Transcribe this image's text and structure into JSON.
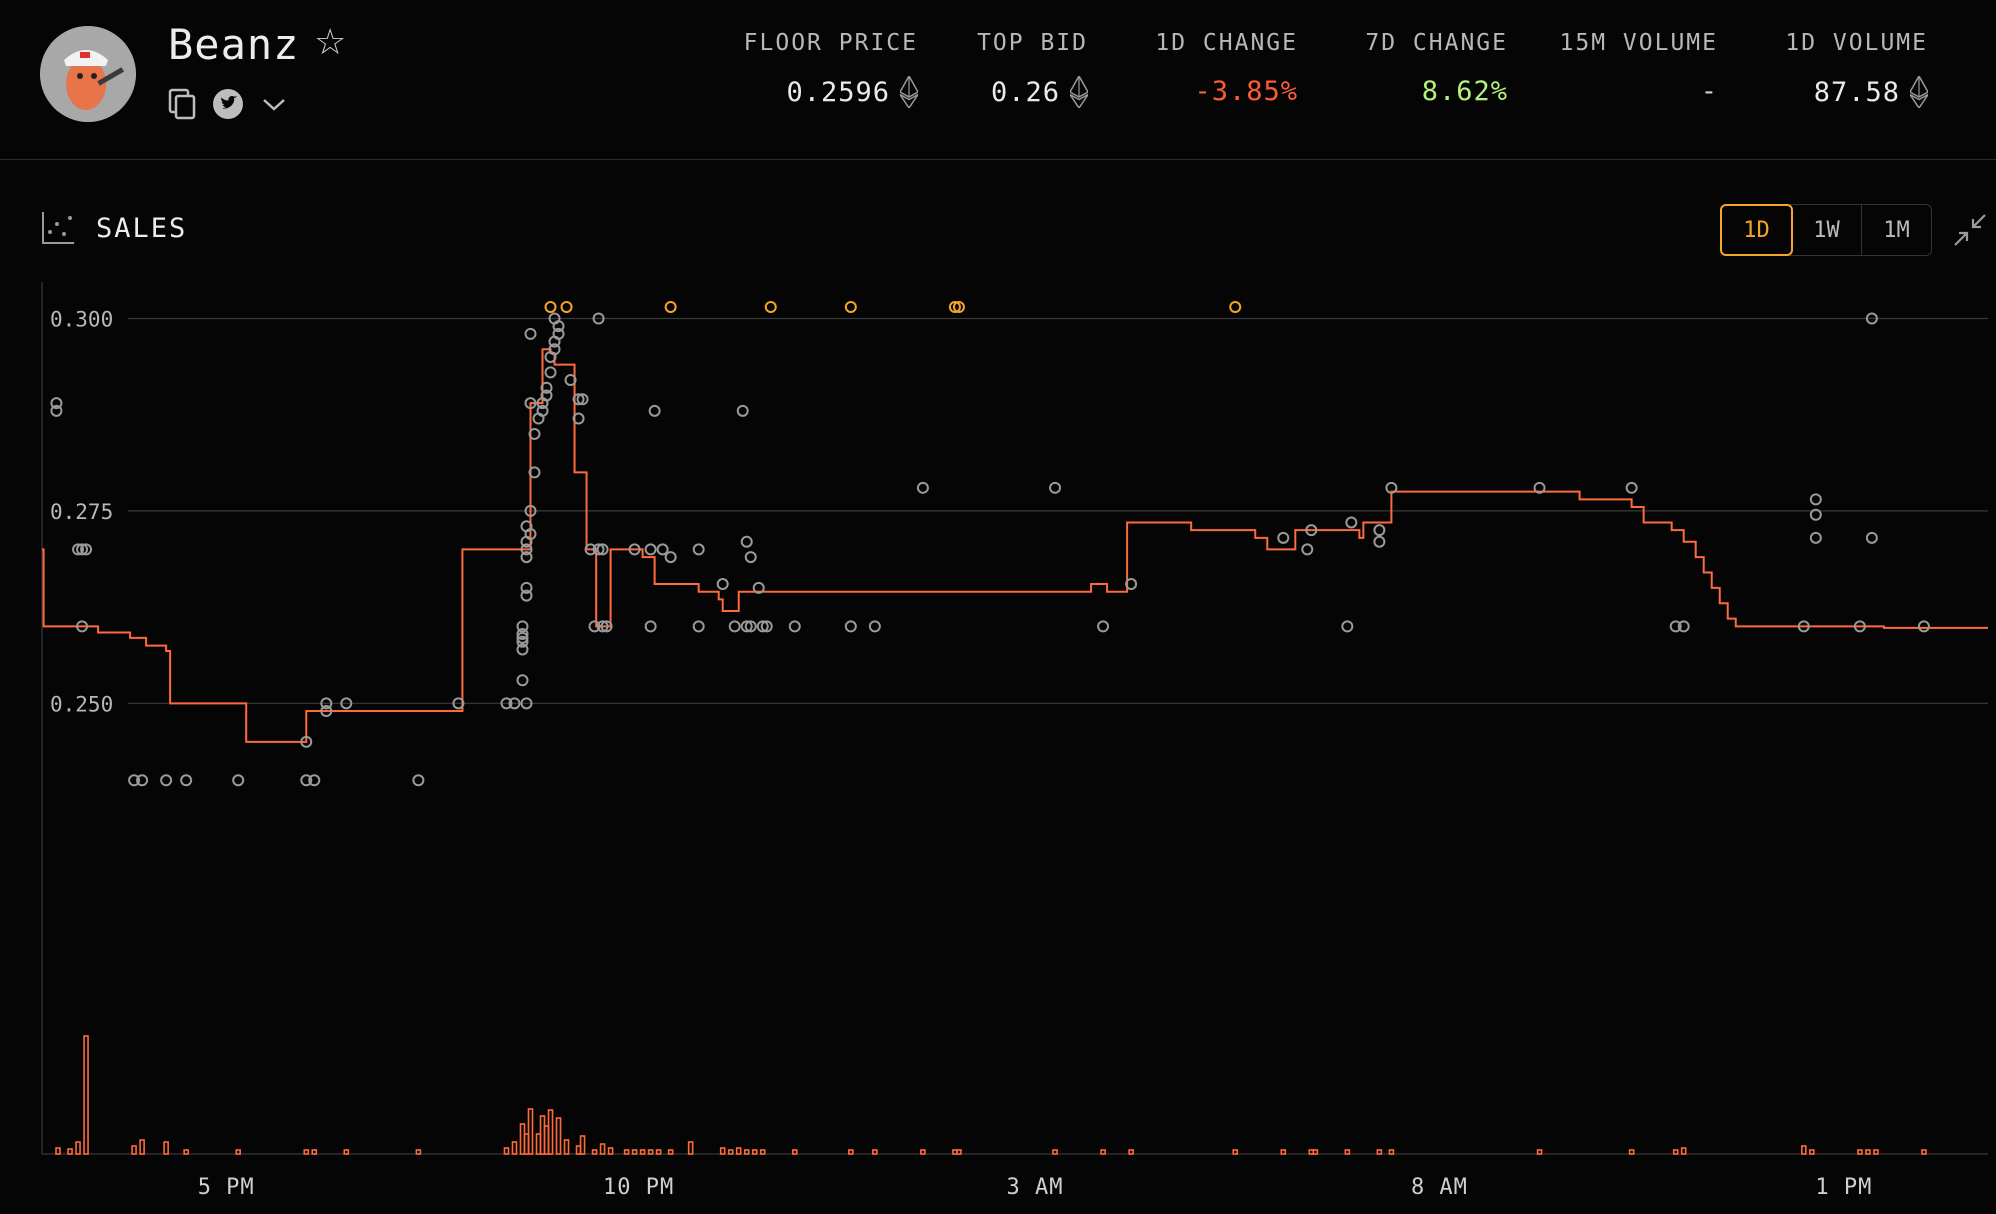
{
  "collection": {
    "name": "Beanz",
    "star_icon": "star-outline-icon",
    "links": [
      "copy-icon",
      "twitter-icon",
      "chevron-down-icon"
    ]
  },
  "stats": [
    {
      "label": "FLOOR PRICE",
      "value": "0.2596",
      "eth": true,
      "color": "#eaeaea"
    },
    {
      "label": "TOP BID",
      "value": "0.26",
      "eth": true,
      "color": "#eaeaea"
    },
    {
      "label": "1D CHANGE",
      "value": "-3.85%",
      "eth": false,
      "color": "#ff5a36"
    },
    {
      "label": "7D CHANGE",
      "value": "8.62%",
      "eth": false,
      "color": "#b6f27a"
    },
    {
      "label": "15M VOLUME",
      "value": "-",
      "eth": false,
      "color": "#cfcfcf"
    },
    {
      "label": "1D VOLUME",
      "value": "87.58",
      "eth": true,
      "color": "#eaeaea"
    }
  ],
  "sales": {
    "title": "SALES",
    "icon": "scatter-chart-icon",
    "ranges": [
      {
        "label": "1D",
        "active": true
      },
      {
        "label": "1W",
        "active": false
      },
      {
        "label": "1M",
        "active": false
      }
    ],
    "collapse_icon": "collapse-arrows-icon"
  },
  "colors": {
    "accent": "#f5a623",
    "floor_line": "#ff6a3d",
    "sale_point": "#9a9a9a",
    "volume_bar": "#ff6a3d",
    "grid": "#3a3a3a"
  },
  "chart_data": {
    "type": "scatter",
    "x_unit": "hours_from_2PM",
    "xlim": [
      0,
      24.3
    ],
    "ylim": [
      0.2225,
      0.305
    ],
    "yticks": [
      {
        "v": 0.3,
        "label": "0.300"
      },
      {
        "v": 0.275,
        "label": "0.275"
      },
      {
        "v": 0.25,
        "label": "0.250"
      }
    ],
    "xticks": [
      {
        "x": 2.3,
        "label": "5 PM"
      },
      {
        "x": 7.45,
        "label": "10 PM"
      },
      {
        "x": 12.4,
        "label": "3 AM"
      },
      {
        "x": 17.45,
        "label": "8 AM"
      },
      {
        "x": 22.5,
        "label": "1 PM"
      }
    ],
    "floor_line": [
      [
        0,
        0.27
      ],
      [
        0.02,
        0.26
      ],
      [
        0.45,
        0.26
      ],
      [
        0.7,
        0.2592
      ],
      [
        1.1,
        0.2585
      ],
      [
        1.3,
        0.2575
      ],
      [
        1.55,
        0.2568
      ],
      [
        1.6,
        0.25
      ],
      [
        2.5,
        0.25
      ],
      [
        2.55,
        0.245
      ],
      [
        3.25,
        0.245
      ],
      [
        3.3,
        0.249
      ],
      [
        5.2,
        0.249
      ],
      [
        5.25,
        0.27
      ],
      [
        6.05,
        0.27
      ],
      [
        6.1,
        0.289
      ],
      [
        6.2,
        0.289
      ],
      [
        6.25,
        0.296
      ],
      [
        6.35,
        0.2955
      ],
      [
        6.4,
        0.294
      ],
      [
        6.6,
        0.294
      ],
      [
        6.65,
        0.28
      ],
      [
        6.75,
        0.28
      ],
      [
        6.8,
        0.27
      ],
      [
        6.9,
        0.27
      ],
      [
        6.92,
        0.26
      ],
      [
        7.05,
        0.26
      ],
      [
        7.1,
        0.27
      ],
      [
        7.5,
        0.269
      ],
      [
        7.65,
        0.2655
      ],
      [
        8.15,
        0.2655
      ],
      [
        8.2,
        0.2645
      ],
      [
        8.45,
        0.2635
      ],
      [
        8.5,
        0.262
      ],
      [
        8.65,
        0.262
      ],
      [
        8.7,
        0.2645
      ],
      [
        13.05,
        0.2645
      ],
      [
        13.1,
        0.2655
      ],
      [
        13.3,
        0.2645
      ],
      [
        13.5,
        0.2645
      ],
      [
        13.55,
        0.2735
      ],
      [
        14.3,
        0.2735
      ],
      [
        14.35,
        0.2725
      ],
      [
        15.1,
        0.2725
      ],
      [
        15.15,
        0.2715
      ],
      [
        15.3,
        0.27
      ],
      [
        15.6,
        0.27
      ],
      [
        15.65,
        0.2725
      ],
      [
        16.4,
        0.2725
      ],
      [
        16.45,
        0.2715
      ],
      [
        16.5,
        0.2735
      ],
      [
        16.8,
        0.2735
      ],
      [
        16.85,
        0.2775
      ],
      [
        19.15,
        0.2775
      ],
      [
        19.2,
        0.2765
      ],
      [
        19.8,
        0.2765
      ],
      [
        19.85,
        0.2755
      ],
      [
        20.0,
        0.2735
      ],
      [
        20.35,
        0.2725
      ],
      [
        20.5,
        0.271
      ],
      [
        20.65,
        0.269
      ],
      [
        20.75,
        0.267
      ],
      [
        20.85,
        0.265
      ],
      [
        20.95,
        0.263
      ],
      [
        21.05,
        0.261
      ],
      [
        21.15,
        0.26
      ],
      [
        22.0,
        0.26
      ],
      [
        23.0,
        0.2598
      ],
      [
        24.3,
        0.2598
      ]
    ],
    "sales": [
      [
        0.18,
        0.289
      ],
      [
        0.18,
        0.288
      ],
      [
        0.45,
        0.27
      ],
      [
        0.5,
        0.27
      ],
      [
        0.55,
        0.27
      ],
      [
        0.5,
        0.26
      ],
      [
        1.15,
        0.24
      ],
      [
        1.25,
        0.24
      ],
      [
        1.55,
        0.24
      ],
      [
        1.8,
        0.24
      ],
      [
        2.45,
        0.24
      ],
      [
        3.3,
        0.24
      ],
      [
        3.4,
        0.24
      ],
      [
        4.7,
        0.24
      ],
      [
        3.3,
        0.245
      ],
      [
        3.55,
        0.249
      ],
      [
        3.55,
        0.25
      ],
      [
        3.8,
        0.25
      ],
      [
        5.2,
        0.25
      ],
      [
        5.8,
        0.25
      ],
      [
        5.9,
        0.25
      ],
      [
        6.05,
        0.25
      ],
      [
        6.0,
        0.253
      ],
      [
        6.0,
        0.257
      ],
      [
        6.0,
        0.258
      ],
      [
        6.0,
        0.2585
      ],
      [
        6.0,
        0.259
      ],
      [
        6.0,
        0.26
      ],
      [
        6.05,
        0.264
      ],
      [
        6.05,
        0.265
      ],
      [
        6.05,
        0.269
      ],
      [
        6.05,
        0.27
      ],
      [
        6.05,
        0.271
      ],
      [
        6.1,
        0.272
      ],
      [
        6.05,
        0.273
      ],
      [
        6.1,
        0.275
      ],
      [
        6.1,
        0.289
      ],
      [
        6.15,
        0.28
      ],
      [
        6.15,
        0.285
      ],
      [
        6.2,
        0.287
      ],
      [
        6.25,
        0.288
      ],
      [
        6.25,
        0.289
      ],
      [
        6.3,
        0.29
      ],
      [
        6.3,
        0.291
      ],
      [
        6.35,
        0.293
      ],
      [
        6.35,
        0.295
      ],
      [
        6.4,
        0.296
      ],
      [
        6.4,
        0.297
      ],
      [
        6.45,
        0.298
      ],
      [
        6.45,
        0.299
      ],
      [
        6.4,
        0.3
      ],
      [
        6.1,
        0.298
      ],
      [
        6.7,
        0.2895
      ],
      [
        6.75,
        0.2895
      ],
      [
        6.9,
        0.26
      ],
      [
        7.0,
        0.26
      ],
      [
        7.05,
        0.26
      ],
      [
        6.95,
        0.27
      ],
      [
        7.0,
        0.27
      ],
      [
        6.85,
        0.27
      ],
      [
        6.6,
        0.292
      ],
      [
        6.7,
        0.287
      ],
      [
        6.95,
        0.3
      ],
      [
        7.6,
        0.27
      ],
      [
        7.75,
        0.27
      ],
      [
        7.4,
        0.27
      ],
      [
        7.85,
        0.269
      ],
      [
        7.65,
        0.288
      ],
      [
        7.6,
        0.26
      ],
      [
        8.2,
        0.26
      ],
      [
        8.2,
        0.27
      ],
      [
        8.5,
        0.2655
      ],
      [
        8.85,
        0.269
      ],
      [
        8.8,
        0.271
      ],
      [
        8.75,
        0.288
      ],
      [
        8.95,
        0.265
      ],
      [
        8.65,
        0.26
      ],
      [
        8.8,
        0.26
      ],
      [
        8.85,
        0.26
      ],
      [
        9.0,
        0.26
      ],
      [
        9.05,
        0.26
      ],
      [
        9.4,
        0.26
      ],
      [
        10.1,
        0.26
      ],
      [
        10.4,
        0.26
      ],
      [
        11.0,
        0.278
      ],
      [
        12.65,
        0.278
      ],
      [
        13.25,
        0.26
      ],
      [
        13.6,
        0.2655
      ],
      [
        15.5,
        0.2715
      ],
      [
        15.85,
        0.2725
      ],
      [
        15.8,
        0.27
      ],
      [
        16.35,
        0.2735
      ],
      [
        16.3,
        0.26
      ],
      [
        16.7,
        0.2725
      ],
      [
        16.7,
        0.271
      ],
      [
        16.85,
        0.278
      ],
      [
        18.7,
        0.278
      ],
      [
        19.85,
        0.278
      ],
      [
        20.4,
        0.26
      ],
      [
        20.5,
        0.26
      ],
      [
        22.0,
        0.26
      ],
      [
        22.7,
        0.26
      ],
      [
        23.5,
        0.26
      ],
      [
        22.15,
        0.2765
      ],
      [
        22.15,
        0.2745
      ],
      [
        22.15,
        0.2715
      ],
      [
        22.85,
        0.2715
      ],
      [
        22.85,
        0.3
      ]
    ],
    "top_sales": [
      6.35,
      6.55,
      7.85,
      9.1,
      10.1,
      11.4,
      11.45,
      14.9
    ],
    "volume_bars": [
      [
        0.2,
        6
      ],
      [
        0.35,
        5
      ],
      [
        0.45,
        12
      ],
      [
        0.55,
        118
      ],
      [
        1.15,
        8
      ],
      [
        1.25,
        14
      ],
      [
        1.55,
        12
      ],
      [
        1.8,
        4
      ],
      [
        2.45,
        4
      ],
      [
        3.3,
        4
      ],
      [
        3.4,
        4
      ],
      [
        3.8,
        4
      ],
      [
        4.7,
        4
      ],
      [
        5.8,
        6
      ],
      [
        5.9,
        12
      ],
      [
        6.0,
        30
      ],
      [
        6.05,
        20
      ],
      [
        6.1,
        45
      ],
      [
        6.2,
        20
      ],
      [
        6.25,
        38
      ],
      [
        6.3,
        28
      ],
      [
        6.35,
        44
      ],
      [
        6.45,
        36
      ],
      [
        6.55,
        14
      ],
      [
        6.7,
        8
      ],
      [
        6.75,
        18
      ],
      [
        6.9,
        4
      ],
      [
        7.0,
        10
      ],
      [
        7.1,
        6
      ],
      [
        7.3,
        4
      ],
      [
        7.4,
        4
      ],
      [
        7.5,
        4
      ],
      [
        7.6,
        4
      ],
      [
        7.7,
        4
      ],
      [
        7.85,
        4
      ],
      [
        8.1,
        12
      ],
      [
        8.5,
        6
      ],
      [
        8.6,
        4
      ],
      [
        8.7,
        6
      ],
      [
        8.8,
        4
      ],
      [
        8.9,
        4
      ],
      [
        9.0,
        4
      ],
      [
        9.4,
        4
      ],
      [
        10.1,
        4
      ],
      [
        10.4,
        4
      ],
      [
        11.0,
        4
      ],
      [
        11.4,
        4
      ],
      [
        11.45,
        4
      ],
      [
        12.65,
        4
      ],
      [
        13.25,
        4
      ],
      [
        13.6,
        4
      ],
      [
        14.9,
        4
      ],
      [
        15.5,
        4
      ],
      [
        15.85,
        4
      ],
      [
        15.9,
        4
      ],
      [
        16.3,
        4
      ],
      [
        16.7,
        4
      ],
      [
        16.85,
        4
      ],
      [
        18.7,
        4
      ],
      [
        19.85,
        4
      ],
      [
        20.4,
        4
      ],
      [
        20.5,
        6
      ],
      [
        22.0,
        8
      ],
      [
        22.1,
        4
      ],
      [
        22.7,
        4
      ],
      [
        22.8,
        4
      ],
      [
        22.9,
        4
      ],
      [
        23.5,
        4
      ]
    ]
  }
}
